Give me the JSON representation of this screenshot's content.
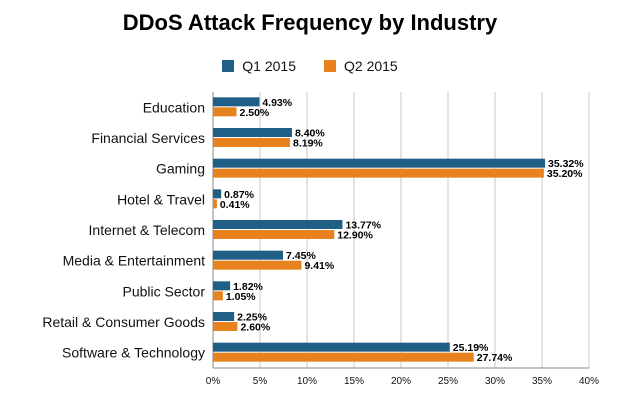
{
  "chart_data": {
    "type": "bar",
    "orientation": "horizontal",
    "title": "DDoS Attack Frequency by Industry",
    "categories": [
      "Education",
      "Financial Services",
      "Gaming",
      "Hotel & Travel",
      "Internet & Telecom",
      "Media & Entertainment",
      "Public Sector",
      "Retail & Consumer Goods",
      "Software & Technology"
    ],
    "series": [
      {
        "name": "Q1 2015",
        "color": "#1f5f86",
        "values": [
          4.93,
          8.4,
          35.32,
          0.87,
          13.77,
          7.45,
          1.82,
          2.25,
          25.19
        ],
        "labels": [
          "4.93%",
          "8.40%",
          "35.32%",
          "0.87%",
          "13.77%",
          "7.45%",
          "1.82%",
          "2.25%",
          "25.19%"
        ]
      },
      {
        "name": "Q2 2015",
        "color": "#e8821e",
        "values": [
          2.5,
          8.19,
          35.2,
          0.41,
          12.9,
          9.41,
          1.05,
          2.6,
          27.74
        ],
        "labels": [
          "2.50%",
          "8.19%",
          "35.20%",
          "0.41%",
          "12.90%",
          "9.41%",
          "1.05%",
          "2.60%",
          "27.74%"
        ]
      }
    ],
    "xlim": [
      0,
      40
    ],
    "xticks": [
      "0%",
      "5%",
      "10%",
      "15%",
      "20%",
      "25%",
      "30%",
      "35%",
      "40%"
    ],
    "xtick_values": [
      0,
      5,
      10,
      15,
      20,
      25,
      30,
      35,
      40
    ],
    "grid": true,
    "legend_position": "top-center"
  }
}
